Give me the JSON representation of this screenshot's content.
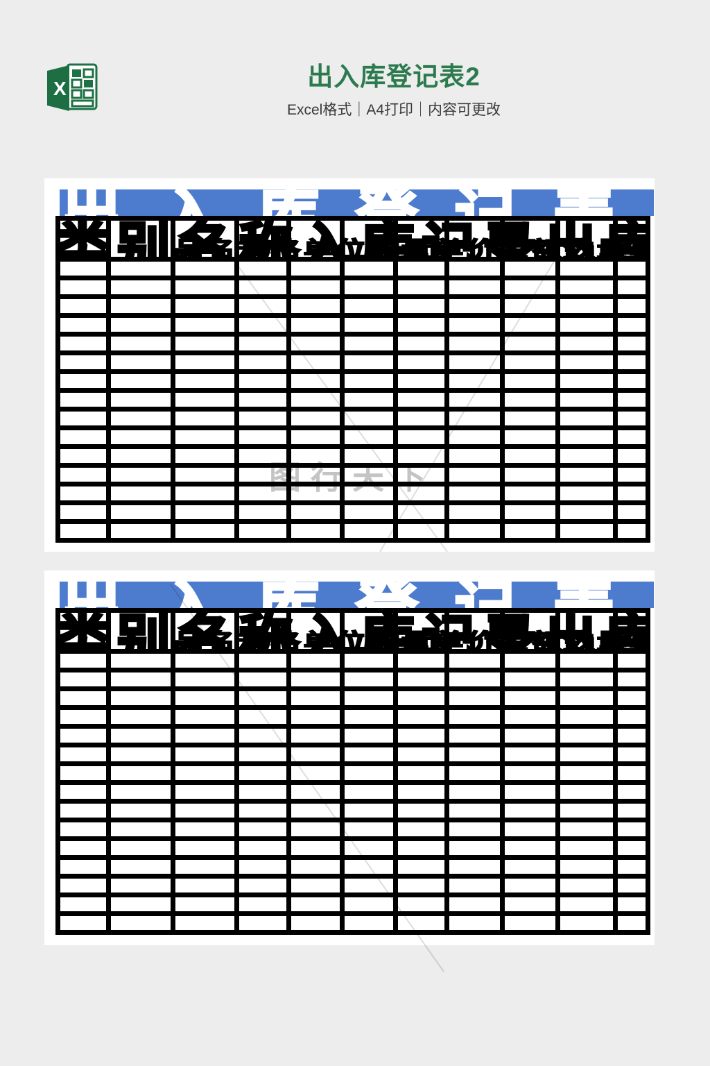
{
  "page": {
    "background_color": "#ededed"
  },
  "header": {
    "excel_icon_letter": "X",
    "title": "出入库登记表2",
    "title_color": "#2c7a4e",
    "subtitle": "Excel格式｜A4打印｜内容可更改"
  },
  "preview": {
    "sheet_title": "出入库登记表",
    "titlebar_color": "#4d7cce",
    "grid_color": "#000000",
    "columns": 11,
    "body_rows": 15,
    "header_distorted_line1": "类别名称入库记录出库记录结存数",
    "header_distorted_line2": "品名规格单位数量单价金额数量单价金额数量"
  },
  "watermark": {
    "text": "图行天下"
  }
}
